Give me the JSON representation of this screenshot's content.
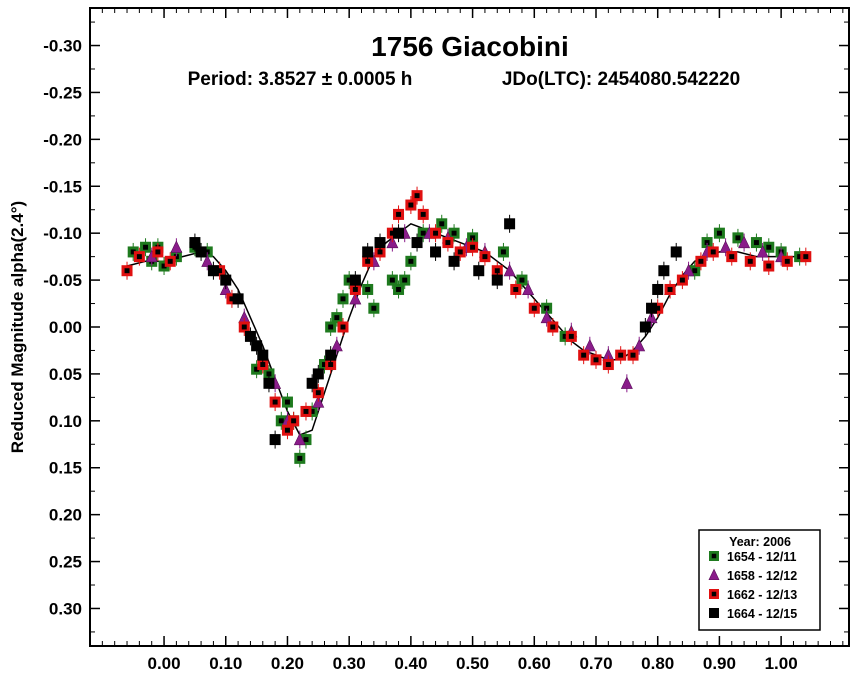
{
  "chart_data": {
    "type": "scatter",
    "title": "1756 Giacobini",
    "subtitle_period": "Period: 3.8527 ± 0.0005 h",
    "subtitle_epoch": "JDo(LTC): 2454080.542220",
    "xlabel": "",
    "ylabel": "Reduced Magnitude alpha(2.4°)",
    "xlim": [
      -0.12,
      1.11
    ],
    "ylim": [
      0.34,
      -0.34
    ],
    "y_inverted": true,
    "grid": false,
    "xticks": [
      "0.00",
      "0.10",
      "0.20",
      "0.30",
      "0.40",
      "0.50",
      "0.60",
      "0.70",
      "0.80",
      "0.90",
      "1.00"
    ],
    "xtick_values": [
      0.0,
      0.1,
      0.2,
      0.3,
      0.4,
      0.5,
      0.6,
      0.7,
      0.8,
      0.9,
      1.0
    ],
    "yticks": [
      "-0.30",
      "-0.25",
      "-0.20",
      "-0.15",
      "-0.10",
      "-0.05",
      "0.00",
      "0.05",
      "0.10",
      "0.15",
      "0.20",
      "0.25",
      "0.30"
    ],
    "ytick_values": [
      -0.3,
      -0.25,
      -0.2,
      -0.15,
      -0.1,
      -0.05,
      0.0,
      0.05,
      0.1,
      0.15,
      0.2,
      0.25,
      0.3
    ],
    "legend": {
      "title": "Year: 2006",
      "position": "bottom-right",
      "entries": [
        "1654 - 12/11",
        "1658 - 12/12",
        "1662 - 12/13",
        "1664 - 12/15"
      ]
    },
    "fit_curve": {
      "x": [
        -0.06,
        -0.03,
        0.0,
        0.03,
        0.06,
        0.08,
        0.1,
        0.12,
        0.14,
        0.16,
        0.18,
        0.2,
        0.22,
        0.24,
        0.26,
        0.28,
        0.3,
        0.32,
        0.34,
        0.36,
        0.38,
        0.4,
        0.42,
        0.44,
        0.46,
        0.48,
        0.5,
        0.52,
        0.54,
        0.56,
        0.58,
        0.6,
        0.62,
        0.64,
        0.66,
        0.68,
        0.7,
        0.72,
        0.74,
        0.76,
        0.78,
        0.8,
        0.82,
        0.84,
        0.86,
        0.88,
        0.9,
        0.93,
        0.96,
        1.0,
        1.04
      ],
      "y": [
        -0.065,
        -0.07,
        -0.07,
        -0.075,
        -0.08,
        -0.075,
        -0.06,
        -0.04,
        -0.01,
        0.02,
        0.055,
        0.09,
        0.115,
        0.11,
        0.07,
        0.03,
        -0.01,
        -0.045,
        -0.075,
        -0.09,
        -0.1,
        -0.11,
        -0.105,
        -0.1,
        -0.095,
        -0.09,
        -0.085,
        -0.08,
        -0.07,
        -0.06,
        -0.045,
        -0.03,
        -0.015,
        0.0,
        0.015,
        0.025,
        0.03,
        0.035,
        0.035,
        0.025,
        0.01,
        -0.01,
        -0.035,
        -0.055,
        -0.07,
        -0.075,
        -0.08,
        -0.08,
        -0.075,
        -0.075,
        -0.075
      ]
    },
    "series": [
      {
        "name": "1654 - 12/11",
        "marker": "square",
        "color": "#1e7a1e",
        "inner": "#000000",
        "x": [
          -0.05,
          -0.03,
          -0.02,
          -0.01,
          0.0,
          0.02,
          0.05,
          0.07,
          0.15,
          0.17,
          0.19,
          0.2,
          0.21,
          0.22,
          0.23,
          0.24,
          0.26,
          0.27,
          0.28,
          0.29,
          0.3,
          0.31,
          0.33,
          0.34,
          0.37,
          0.38,
          0.39,
          0.4,
          0.42,
          0.45,
          0.47,
          0.5,
          0.55,
          0.58,
          0.62,
          0.65,
          0.86,
          0.88,
          0.9,
          0.93,
          0.96,
          0.98,
          1.0,
          1.03
        ],
        "y": [
          -0.08,
          -0.085,
          -0.07,
          -0.085,
          -0.065,
          -0.075,
          -0.085,
          -0.08,
          0.045,
          0.05,
          0.1,
          0.08,
          0.1,
          0.14,
          0.12,
          0.09,
          0.04,
          0.0,
          -0.01,
          -0.03,
          -0.05,
          -0.045,
          -0.04,
          -0.02,
          -0.05,
          -0.04,
          -0.05,
          -0.07,
          -0.1,
          -0.11,
          -0.1,
          -0.095,
          -0.08,
          -0.05,
          -0.02,
          0.01,
          -0.06,
          -0.09,
          -0.1,
          -0.095,
          -0.09,
          -0.085,
          -0.08,
          -0.075
        ]
      },
      {
        "name": "1658 - 12/12",
        "marker": "triangle",
        "color": "#8a1c8a",
        "x": [
          -0.02,
          0.02,
          0.07,
          0.1,
          0.13,
          0.18,
          0.2,
          0.22,
          0.25,
          0.28,
          0.31,
          0.34,
          0.37,
          0.39,
          0.43,
          0.46,
          0.49,
          0.52,
          0.56,
          0.59,
          0.62,
          0.66,
          0.69,
          0.72,
          0.75,
          0.77,
          0.79,
          0.82,
          0.85,
          0.88,
          0.91,
          0.94,
          0.97,
          1.0
        ],
        "y": [
          -0.075,
          -0.085,
          -0.07,
          -0.04,
          -0.01,
          0.06,
          0.1,
          0.12,
          0.08,
          0.02,
          -0.03,
          -0.07,
          -0.09,
          -0.1,
          -0.1,
          -0.095,
          -0.085,
          -0.08,
          -0.06,
          -0.04,
          -0.01,
          0.005,
          0.02,
          0.03,
          0.06,
          0.02,
          -0.01,
          -0.04,
          -0.06,
          -0.08,
          -0.085,
          -0.09,
          -0.08,
          -0.075
        ]
      },
      {
        "name": "1662 - 12/13",
        "marker": "square",
        "color": "#e01010",
        "inner": "#000000",
        "x": [
          -0.06,
          -0.04,
          -0.01,
          0.01,
          0.09,
          0.11,
          0.13,
          0.16,
          0.18,
          0.2,
          0.21,
          0.23,
          0.25,
          0.27,
          0.29,
          0.31,
          0.33,
          0.35,
          0.37,
          0.38,
          0.4,
          0.41,
          0.42,
          0.44,
          0.46,
          0.48,
          0.5,
          0.52,
          0.54,
          0.57,
          0.6,
          0.63,
          0.66,
          0.68,
          0.7,
          0.72,
          0.74,
          0.76,
          0.8,
          0.82,
          0.84,
          0.87,
          0.89,
          0.92,
          0.95,
          0.98,
          1.01,
          1.04
        ],
        "y": [
          -0.06,
          -0.075,
          -0.08,
          -0.07,
          -0.06,
          -0.03,
          0.0,
          0.04,
          0.08,
          0.11,
          0.1,
          0.09,
          0.07,
          0.04,
          0.0,
          -0.04,
          -0.07,
          -0.08,
          -0.1,
          -0.12,
          -0.13,
          -0.14,
          -0.12,
          -0.1,
          -0.09,
          -0.08,
          -0.085,
          -0.075,
          -0.06,
          -0.04,
          -0.02,
          0.0,
          0.01,
          0.03,
          0.035,
          0.04,
          0.03,
          0.03,
          -0.02,
          -0.04,
          -0.05,
          -0.07,
          -0.08,
          -0.075,
          -0.07,
          -0.065,
          -0.07,
          -0.075
        ]
      },
      {
        "name": "1664 - 12/15",
        "marker": "square",
        "color": "#000000",
        "x": [
          0.05,
          0.06,
          0.08,
          0.1,
          0.12,
          0.14,
          0.15,
          0.16,
          0.17,
          0.18,
          0.24,
          0.25,
          0.27,
          0.31,
          0.33,
          0.35,
          0.38,
          0.41,
          0.44,
          0.47,
          0.51,
          0.54,
          0.56,
          0.78,
          0.79,
          0.8,
          0.81,
          0.83
        ],
        "y": [
          -0.09,
          -0.08,
          -0.06,
          -0.05,
          -0.03,
          0.01,
          0.02,
          0.03,
          0.06,
          0.12,
          0.06,
          0.05,
          0.03,
          -0.05,
          -0.08,
          -0.09,
          -0.1,
          -0.09,
          -0.08,
          -0.07,
          -0.06,
          -0.05,
          -0.11,
          0.0,
          -0.02,
          -0.04,
          -0.06,
          -0.08
        ]
      }
    ]
  }
}
